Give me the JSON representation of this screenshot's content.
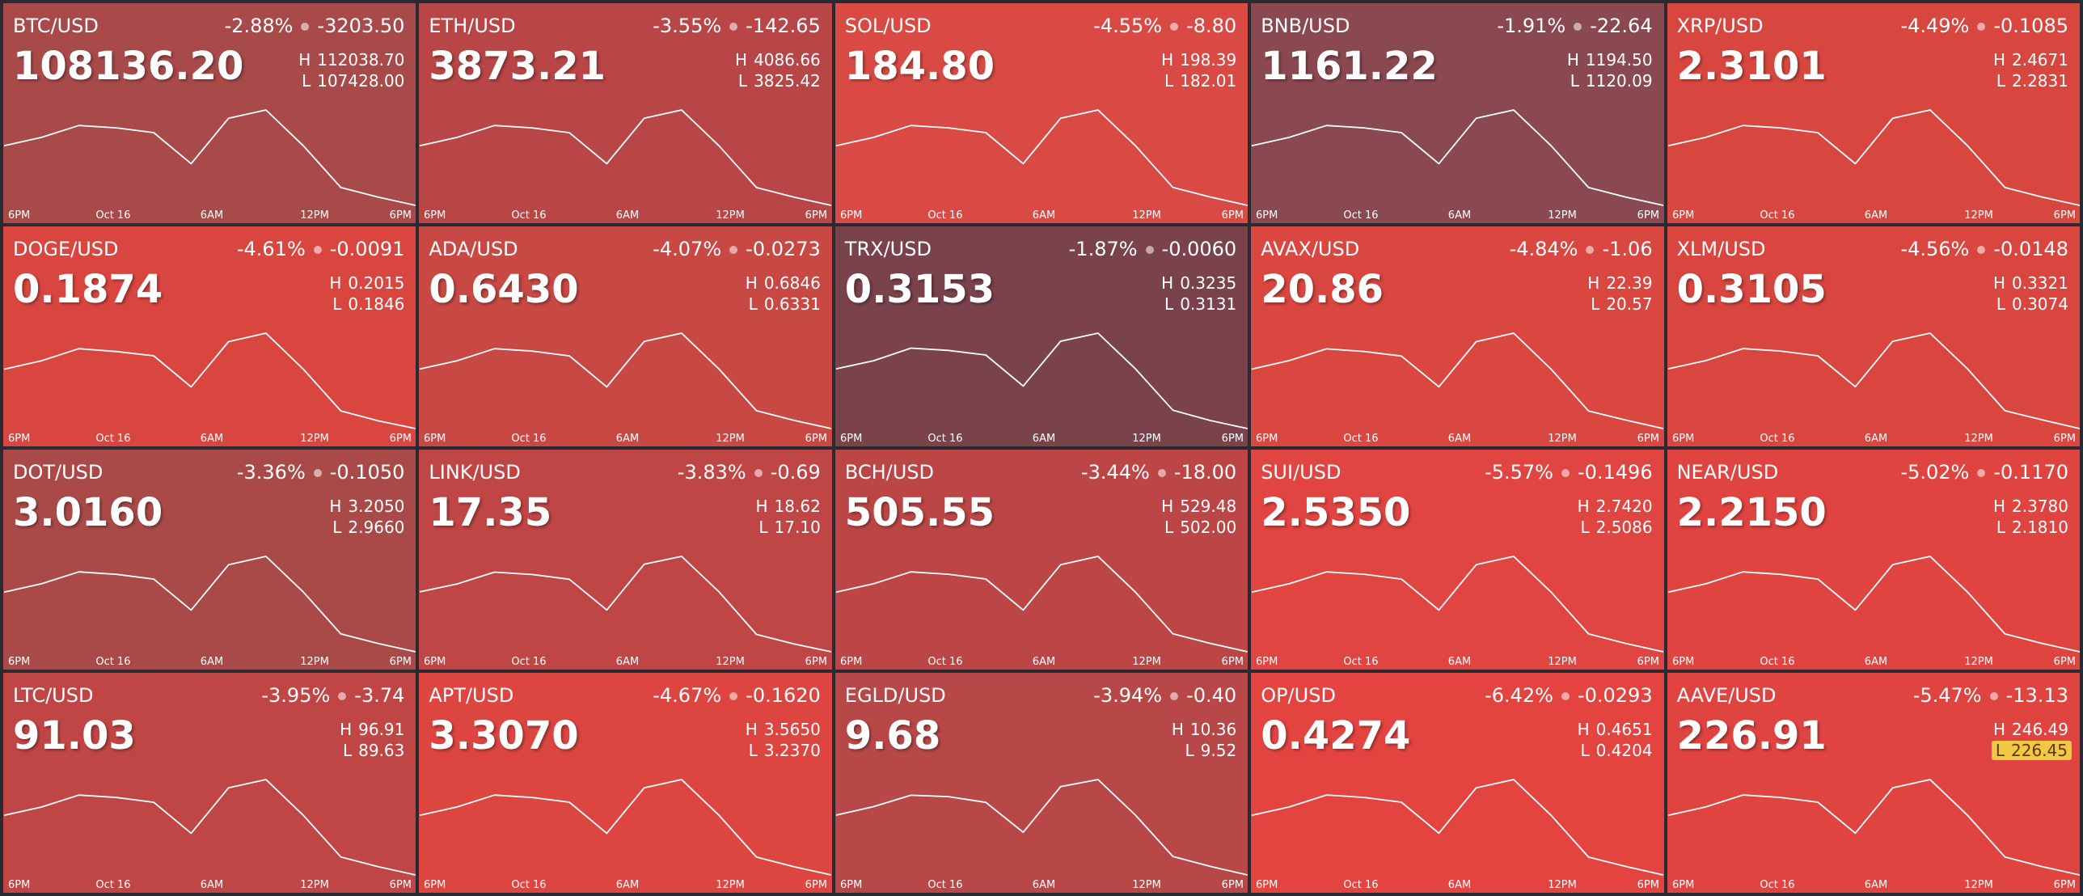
{
  "labels": {
    "high": "H",
    "low": "L"
  },
  "time_axis": [
    "6PM",
    "Oct 16",
    "6AM",
    "12PM",
    "6PM"
  ],
  "tiles": [
    {
      "pair": "BTC/USD",
      "change_pct": "-2.88%",
      "change": "-3203.50",
      "price": "108136.20",
      "high": "112038.70",
      "low": "107428.00",
      "color": "#a84a4a",
      "spark": [
        109964,
        110287,
        110748,
        110655,
        110471,
        109272,
        111024,
        111347,
        109964,
        108350,
        107981,
        107659
      ]
    },
    {
      "pair": "ETH/USD",
      "change_pct": "-3.55%",
      "change": "-142.65",
      "price": "3873.21",
      "high": "4086.66",
      "low": "3825.42",
      "color": "#b84646",
      "spark": [
        3969.1,
        3987.4,
        4013.5,
        4008.3,
        3997.8,
        3929.9,
        4029.2,
        4047.5,
        3969.1,
        3877.6,
        3856.7,
        3838.5
      ]
    },
    {
      "pair": "SOL/USD",
      "change_pct": "-4.55%",
      "change": "-8.80",
      "price": "184.80",
      "high": "198.39",
      "low": "182.01",
      "color": "#d94a44",
      "spark": [
        191.02,
        192.17,
        193.8,
        193.48,
        192.82,
        188.56,
        194.79,
        195.93,
        191.02,
        185.29,
        183.98,
        182.83
      ]
    },
    {
      "pair": "BNB/USD",
      "change_pct": "-1.91%",
      "change": "-22.64",
      "price": "1161.22",
      "high": "1194.50",
      "low": "1120.09",
      "color": "#8a4850",
      "spark": [
        1161.02,
        1166.22,
        1173.67,
        1172.18,
        1169.2,
        1149.85,
        1178.13,
        1183.34,
        1161.02,
        1134.97,
        1129.02,
        1123.81
      ]
    },
    {
      "pair": "XRP/USD",
      "change_pct": "-4.49%",
      "change": "-0.1085",
      "price": "2.3101",
      "high": "2.4671",
      "low": "2.2831",
      "color": "#d8473f",
      "spark": [
        2.3843,
        2.3972,
        2.4156,
        2.4119,
        2.4045,
        2.3567,
        2.4266,
        2.4395,
        2.3843,
        2.3199,
        2.3052,
        2.2923
      ]
    },
    {
      "pair": "DOGE/USD",
      "change_pct": "-4.61%",
      "change": "-0.0091",
      "price": "0.1874",
      "high": "0.2015",
      "low": "0.1846",
      "color": "#d94640",
      "spark": [
        0.1939,
        0.1951,
        0.1968,
        0.1964,
        0.1958,
        0.1914,
        0.1978,
        0.199,
        0.1939,
        0.188,
        0.1866,
        0.1855
      ]
    },
    {
      "pair": "ADA/USD",
      "change_pct": "-4.07%",
      "change": "-0.0273",
      "price": "0.6430",
      "high": "0.6846",
      "low": "0.6331",
      "color": "#c84844",
      "spark": [
        0.6614,
        0.665,
        0.6702,
        0.6692,
        0.6671,
        0.6537,
        0.6733,
        0.6769,
        0.6614,
        0.6434,
        0.6393,
        0.6357
      ]
    },
    {
      "pair": "TRX/USD",
      "change_pct": "-1.87%",
      "change": "-0.0060",
      "price": "0.3153",
      "high": "0.3235",
      "low": "0.3131",
      "color": "#7a424a",
      "spark": [
        0.3188,
        0.3195,
        0.3206,
        0.3204,
        0.32,
        0.3173,
        0.3212,
        0.3219,
        0.3188,
        0.3152,
        0.3143,
        0.3136
      ]
    },
    {
      "pair": "AVAX/USD",
      "change_pct": "-4.84%",
      "change": "-1.06",
      "price": "20.86",
      "high": "22.39",
      "low": "20.57",
      "color": "#da4640",
      "spark": [
        21.57,
        21.7,
        21.88,
        21.84,
        21.77,
        21.3,
        21.99,
        22.12,
        21.57,
        20.93,
        20.79,
        20.66
      ]
    },
    {
      "pair": "XLM/USD",
      "change_pct": "-4.56%",
      "change": "-0.0148",
      "price": "0.3105",
      "high": "0.3321",
      "low": "0.3074",
      "color": "#d9463f",
      "spark": [
        0.321,
        0.3227,
        0.3252,
        0.3247,
        0.3237,
        0.3173,
        0.3267,
        0.3284,
        0.321,
        0.3123,
        0.3104,
        0.3086
      ]
    },
    {
      "pair": "DOT/USD",
      "change_pct": "-3.36%",
      "change": "-0.1050",
      "price": "3.0160",
      "high": "3.2050",
      "low": "2.9660",
      "color": "#aa4a48",
      "spark": [
        3.0975,
        3.1142,
        3.1381,
        3.1333,
        3.1237,
        3.0616,
        3.1524,
        3.1692,
        3.0975,
        3.0138,
        2.9947,
        2.978
      ]
    },
    {
      "pair": "LINK/USD",
      "change_pct": "-3.83%",
      "change": "-0.69",
      "price": "17.35",
      "high": "18.62",
      "low": "17.10",
      "color": "#c04645",
      "spark": [
        17.94,
        18.04,
        18.19,
        18.16,
        18.1,
        17.71,
        18.29,
        18.39,
        17.94,
        17.4,
        17.28,
        17.18
      ]
    },
    {
      "pair": "BCH/USD",
      "change_pct": "-3.44%",
      "change": "-18.00",
      "price": "505.55",
      "high": "529.48",
      "low": "502.00",
      "color": "#bc4646",
      "spark": [
        517.11,
        519.04,
        521.79,
        521.24,
        520.14,
        512.99,
        523.43,
        525.36,
        517.11,
        507.5,
        505.3,
        503.37
      ]
    },
    {
      "pair": "SUI/USD",
      "change_pct": "-5.57%",
      "change": "-0.1496",
      "price": "2.5350",
      "high": "2.7420",
      "low": "2.5086",
      "color": "#e04542",
      "spark": [
        2.637,
        2.6533,
        2.6766,
        2.672,
        2.6626,
        2.602,
        2.6907,
        2.707,
        2.637,
        2.5553,
        2.5366,
        2.5203
      ]
    },
    {
      "pair": "NEAR/USD",
      "change_pct": "-5.02%",
      "change": "-0.1170",
      "price": "2.2150",
      "high": "2.3780",
      "low": "2.1810",
      "color": "#df4441",
      "spark": [
        2.2894,
        2.3031,
        2.3228,
        2.3189,
        2.311,
        2.2598,
        2.3347,
        2.3485,
        2.2894,
        2.2204,
        2.2046,
        2.1909
      ]
    },
    {
      "pair": "LTC/USD",
      "change_pct": "-3.95%",
      "change": "-3.74",
      "price": "91.03",
      "high": "96.91",
      "low": "89.63",
      "color": "#c04645",
      "spark": [
        93.63,
        94.14,
        94.87,
        94.73,
        94.43,
        92.54,
        95.31,
        95.82,
        93.63,
        91.09,
        90.5,
        89.99
      ]
    },
    {
      "pair": "APT/USD",
      "change_pct": "-4.67%",
      "change": "-0.1620",
      "price": "3.3070",
      "high": "3.5650",
      "low": "3.2370",
      "color": "#dc4540",
      "spark": [
        3.4174,
        3.4404,
        3.4732,
        3.4666,
        3.4535,
        3.3682,
        3.4928,
        3.5158,
        3.4174,
        3.3026,
        3.2764,
        3.2534
      ]
    },
    {
      "pair": "EGLD/USD",
      "change_pct": "-3.94%",
      "change": "-0.40",
      "price": "9.68",
      "high": "10.36",
      "low": "9.52",
      "color": "#b84848",
      "spark": [
        9.98,
        10.04,
        10.12,
        10.11,
        10.07,
        9.86,
        10.18,
        10.23,
        9.98,
        9.69,
        9.62,
        9.56
      ]
    },
    {
      "pair": "OP/USD",
      "change_pct": "-6.42%",
      "change": "-0.0293",
      "price": "0.4274",
      "high": "0.4651",
      "low": "0.4204",
      "color": "#e34440",
      "spark": [
        0.445,
        0.4481,
        0.4526,
        0.4517,
        0.4499,
        0.4383,
        0.4553,
        0.4584,
        0.445,
        0.4293,
        0.4258,
        0.4226
      ]
    },
    {
      "pair": "AAVE/USD",
      "change_pct": "-5.47%",
      "change": "-13.13",
      "price": "226.91",
      "high": "246.49",
      "low": "226.45",
      "color": "#e04440",
      "low_highlight": true,
      "spark": [
        237.47,
        238.87,
        240.88,
        240.48,
        239.68,
        234.47,
        242.08,
        243.48,
        237.47,
        230.46,
        228.85,
        227.45
      ]
    }
  ]
}
